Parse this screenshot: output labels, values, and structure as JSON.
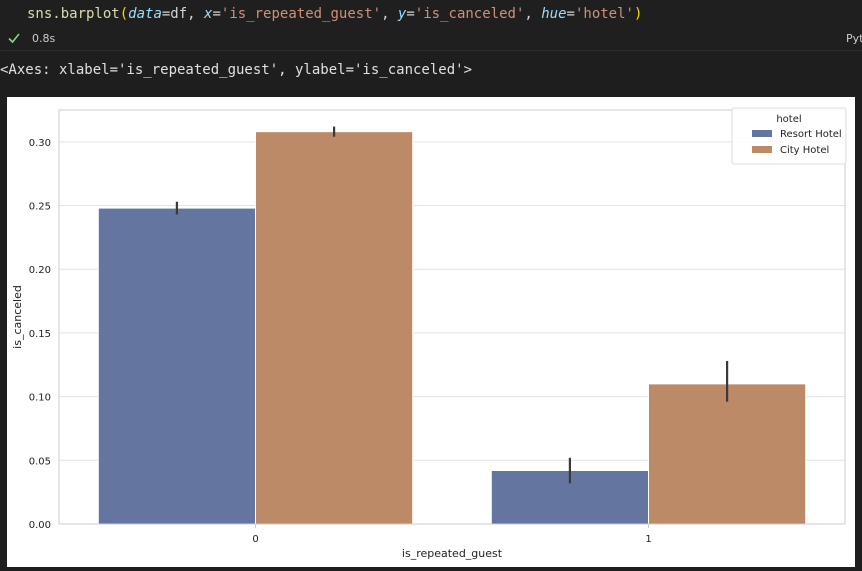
{
  "cell": {
    "code": {
      "fn": "sns.barplot",
      "open": "(",
      "arg1_kw": "data",
      "arg1_eq": "=df, ",
      "arg2_kw": "x",
      "arg2_eq": "=",
      "arg2_val": "'is_repeated_guest'",
      "sep2": ", ",
      "arg3_kw": "y",
      "arg3_eq": "=",
      "arg3_val": "'is_canceled'",
      "sep3": ", ",
      "arg4_kw": "hue",
      "arg4_eq": "=",
      "arg4_val": "'hotel'",
      "close": ")"
    },
    "exec_time": "0.8s",
    "language": "Python",
    "output_repr": "<Axes: xlabel='is_repeated_guest', ylabel='is_canceled'>"
  },
  "colors": {
    "resort": "#6475a0",
    "city": "#bc8a67",
    "errbar": "#3a3a3a",
    "success": "#89d185"
  },
  "chart_data": {
    "type": "bar",
    "xlabel": "is_repeated_guest",
    "ylabel": "is_canceled",
    "categories": [
      "0",
      "1"
    ],
    "ylim": [
      0,
      0.325
    ],
    "yticks": [
      0.0,
      0.05,
      0.1,
      0.15,
      0.2,
      0.25,
      0.3
    ],
    "ytick_labels": [
      "0.00",
      "0.05",
      "0.10",
      "0.15",
      "0.20",
      "0.25",
      "0.30"
    ],
    "grid": true,
    "legend": {
      "title": "hotel",
      "placement": "top-right"
    },
    "series": [
      {
        "name": "Resort Hotel",
        "values": [
          0.248,
          0.042
        ],
        "ci_low": [
          0.243,
          0.032
        ],
        "ci_high": [
          0.253,
          0.052
        ]
      },
      {
        "name": "City Hotel",
        "values": [
          0.308,
          0.11
        ],
        "ci_low": [
          0.304,
          0.096
        ],
        "ci_high": [
          0.312,
          0.128
        ]
      }
    ]
  }
}
